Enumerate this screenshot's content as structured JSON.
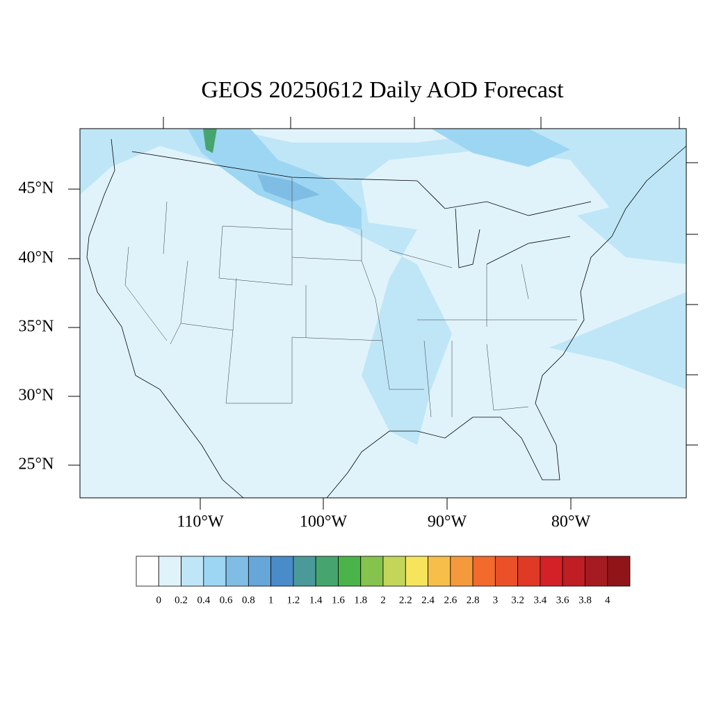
{
  "title": "GEOS 20250612 Daily AOD Forecast",
  "lat_labels": [
    "45°N",
    "40°N",
    "35°N",
    "30°N",
    "25°N"
  ],
  "lon_labels": [
    "110°W",
    "100°W",
    "90°W",
    "80°W"
  ],
  "colorbar": {
    "levels": [
      0,
      0.2,
      0.4,
      0.6,
      0.8,
      1,
      1.2,
      1.4,
      1.6,
      1.8,
      2,
      2.2,
      2.4,
      2.6,
      2.8,
      3,
      3.2,
      3.4,
      3.6,
      3.8,
      4
    ],
    "colors": [
      "#ffffff",
      "#e0f3fb",
      "#bfe6f7",
      "#9dd6f2",
      "#80bde4",
      "#66a6d9",
      "#4a8bc9",
      "#4a9a9a",
      "#46a56e",
      "#4ab44a",
      "#86c24e",
      "#c3d65a",
      "#f6e55c",
      "#f7bf4a",
      "#f59a3c",
      "#f26a2c",
      "#ea5128",
      "#de3a26",
      "#d42128",
      "#be1e24",
      "#a61b21",
      "#8f1519"
    ]
  }
}
